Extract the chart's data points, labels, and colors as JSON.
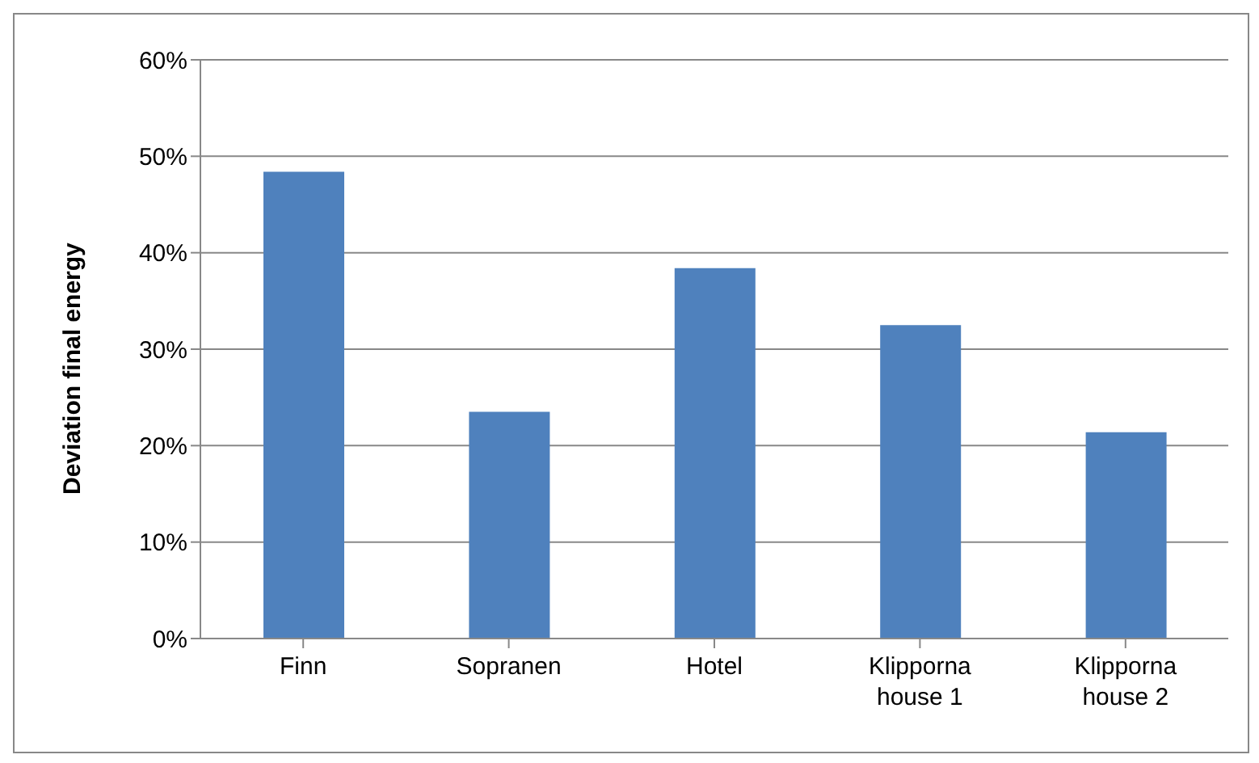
{
  "chart_data": {
    "type": "bar",
    "ylabel": "Deviation final energy",
    "categories": [
      "Finn",
      "Sopranen",
      "Hotel",
      "Klipporna house 1",
      "Klipporna house 2"
    ],
    "values": [
      48.4,
      23.5,
      38.4,
      32.5,
      21.4
    ],
    "color": "#4f81bd",
    "ylim": [
      0,
      60
    ],
    "yticks": [
      {
        "value": 0,
        "label": "0%"
      },
      {
        "value": 10,
        "label": "10%"
      },
      {
        "value": 20,
        "label": "20%"
      },
      {
        "value": 30,
        "label": "30%"
      },
      {
        "value": 40,
        "label": "40%"
      },
      {
        "value": 50,
        "label": "50%"
      },
      {
        "value": 60,
        "label": "60%"
      }
    ],
    "grid": "y",
    "legend": false
  }
}
